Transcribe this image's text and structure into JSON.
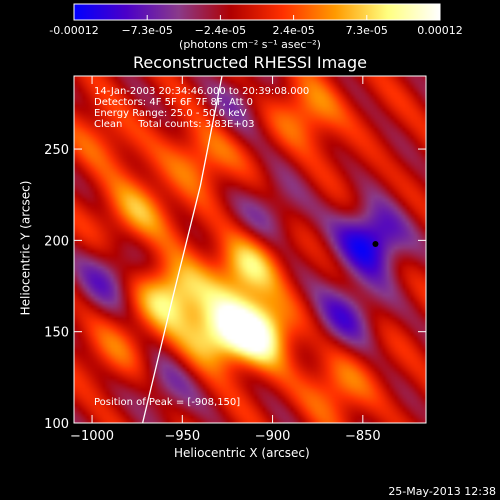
{
  "colorbar": {
    "tick_labels": [
      "-0.00012",
      "−7.3e-05",
      "−2.4e-05",
      "2.4e-05",
      "7.3e-05",
      "0.00012"
    ],
    "units_label": "(photons cm⁻² s⁻¹ asec⁻²)",
    "colors": [
      "#0000ff",
      "#4b00c8",
      "#8a3a8a",
      "#b00000",
      "#ff3000",
      "#ff9a00",
      "#ffff80",
      "#ffffff"
    ]
  },
  "header": {
    "time_range": "14-Jan-2003 20:34:46.000 to 20:39:08.000",
    "detectors": "Detectors: 4F 5F 6F 7F 8F, Att 0",
    "energy_range": "Energy Range: 25.0 - 50.0 keV",
    "clean_counts": "Clean     Total counts: 3.83E+03"
  },
  "peak_label": "Position of Peak = [-908,150]",
  "date_stamp": "25-May-2013 12:38",
  "chart_data": {
    "type": "heatmap",
    "title": "Reconstructed RHESSI Image",
    "xlabel": "Heliocentric X (arcsec)",
    "ylabel": "Heliocentric Y (arcsec)",
    "xlim": [
      -1010,
      -815
    ],
    "ylim": [
      100,
      290
    ],
    "xticks": [
      -1000,
      -950,
      -900,
      -850
    ],
    "xtick_labels": [
      "−1000",
      "−950",
      "−900",
      "−850"
    ],
    "yticks": [
      100,
      150,
      200,
      250
    ],
    "ytick_labels": [
      "100",
      "150",
      "200",
      "250"
    ],
    "peak_position": [
      -908,
      150
    ],
    "limb_curve": [
      [
        -972,
        100
      ],
      [
        -955,
        170
      ],
      [
        -940,
        230
      ],
      [
        -928,
        290
      ]
    ],
    "sources": [
      {
        "x": -955,
        "y": 170,
        "value": 1.0
      },
      {
        "x": -930,
        "y": 150,
        "value": 0.95
      },
      {
        "x": -908,
        "y": 150,
        "value": 1.2
      },
      {
        "x": -915,
        "y": 185,
        "value": 0.8
      },
      {
        "x": -940,
        "y": 245,
        "value": 0.55
      },
      {
        "x": -975,
        "y": 215,
        "value": 0.6
      },
      {
        "x": -880,
        "y": 270,
        "value": 0.55
      },
      {
        "x": -865,
        "y": 120,
        "value": 0.5
      },
      {
        "x": -985,
        "y": 140,
        "value": 0.35
      },
      {
        "x": -995,
        "y": 255,
        "value": 0.35
      },
      {
        "x": -845,
        "y": 200,
        "value": -1.0
      },
      {
        "x": -860,
        "y": 160,
        "value": -0.6
      },
      {
        "x": -900,
        "y": 215,
        "value": -0.4
      },
      {
        "x": -990,
        "y": 180,
        "value": -0.5
      },
      {
        "x": -960,
        "y": 120,
        "value": -0.4
      },
      {
        "x": -920,
        "y": 275,
        "value": -0.3
      }
    ]
  }
}
